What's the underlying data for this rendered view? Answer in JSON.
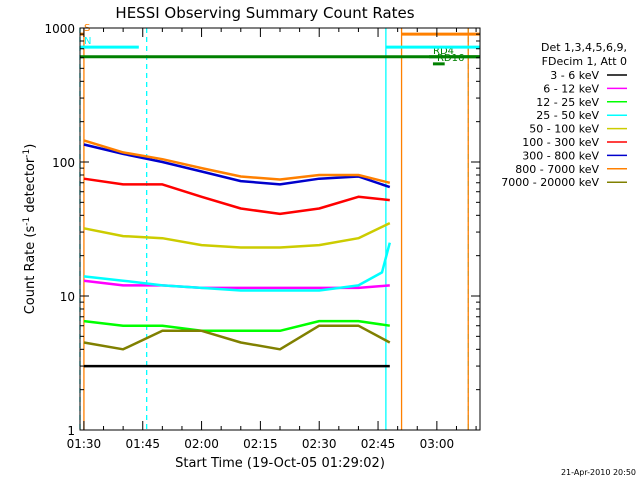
{
  "chart_data": {
    "type": "line",
    "title": "HESSI Observing Summary Count Rates",
    "xlabel": "Start Time (19-Oct-05 01:29:02)",
    "ylabel_main": "Count Rate (s",
    "ylabel_sup1": "-1",
    "ylabel_mid": " detector",
    "ylabel_sup2": "-1",
    "ylabel_end": ")",
    "y_scale": "log",
    "ylim": [
      1,
      1000
    ],
    "y_ticks": [
      {
        "value": 1,
        "label": "1"
      },
      {
        "value": 10,
        "label": "10"
      },
      {
        "value": 100,
        "label": "100"
      },
      {
        "value": 1000,
        "label": "1000"
      }
    ],
    "xlim": [
      "01:29",
      "03:11"
    ],
    "x_ticks": [
      {
        "value": "01:30",
        "label": "01:30"
      },
      {
        "value": "01:45",
        "label": "01:45"
      },
      {
        "value": "02:00",
        "label": "02:00"
      },
      {
        "value": "02:15",
        "label": "02:15"
      },
      {
        "value": "02:30",
        "label": "02:30"
      },
      {
        "value": "02:45",
        "label": "02:45"
      },
      {
        "value": "03:00",
        "label": "03:00"
      }
    ],
    "legend_header": [
      "Det 1,3,4,5,6,9,",
      "FDecim 1, Att 0"
    ],
    "legend_placement": "right",
    "series": [
      {
        "name": "3 - 6 keV",
        "color": "#000000",
        "x": [
          "01:30",
          "01:40",
          "01:50",
          "02:00",
          "02:10",
          "02:20",
          "02:30",
          "02:40",
          "02:48"
        ],
        "values": [
          3,
          3,
          3,
          3,
          3,
          3,
          3,
          3,
          3
        ]
      },
      {
        "name": "6 - 12 keV",
        "color": "#ff00ff",
        "x": [
          "01:30",
          "01:40",
          "01:50",
          "02:00",
          "02:10",
          "02:20",
          "02:30",
          "02:40",
          "02:48"
        ],
        "values": [
          13,
          12,
          12,
          11.5,
          11.5,
          11.5,
          11.5,
          11.5,
          12
        ]
      },
      {
        "name": "12 - 25 keV",
        "color": "#00ff00",
        "x": [
          "01:30",
          "01:40",
          "01:50",
          "02:00",
          "02:10",
          "02:20",
          "02:30",
          "02:40",
          "02:48"
        ],
        "values": [
          6.5,
          6,
          6,
          5.5,
          5.5,
          5.5,
          6.5,
          6.5,
          6
        ]
      },
      {
        "name": "25 - 50 keV",
        "color": "#00ffff",
        "x": [
          "01:30",
          "01:40",
          "01:50",
          "02:00",
          "02:10",
          "02:20",
          "02:30",
          "02:40",
          "02:46",
          "02:48"
        ],
        "values": [
          14,
          13,
          12,
          11.5,
          11,
          11,
          11,
          12,
          15,
          25
        ]
      },
      {
        "name": "50 - 100 keV",
        "color": "#cccc00",
        "x": [
          "01:30",
          "01:40",
          "01:50",
          "02:00",
          "02:10",
          "02:20",
          "02:30",
          "02:40",
          "02:48"
        ],
        "values": [
          32,
          28,
          27,
          24,
          23,
          23,
          24,
          27,
          35
        ]
      },
      {
        "name": "100 - 300 keV",
        "color": "#ff0000",
        "x": [
          "01:30",
          "01:40",
          "01:50",
          "02:00",
          "02:10",
          "02:20",
          "02:30",
          "02:40",
          "02:48"
        ],
        "values": [
          75,
          68,
          68,
          55,
          45,
          41,
          45,
          55,
          52
        ]
      },
      {
        "name": "300 - 800 keV",
        "color": "#0000cc",
        "x": [
          "01:30",
          "01:40",
          "01:50",
          "02:00",
          "02:10",
          "02:20",
          "02:30",
          "02:40",
          "02:48"
        ],
        "values": [
          135,
          115,
          100,
          85,
          72,
          68,
          75,
          78,
          65
        ]
      },
      {
        "name": "800 - 7000 keV",
        "color": "#ff8000",
        "x": [
          "01:30",
          "01:40",
          "01:50",
          "02:00",
          "02:10",
          "02:20",
          "02:30",
          "02:40",
          "02:48"
        ],
        "values": [
          145,
          118,
          105,
          90,
          78,
          74,
          80,
          80,
          70
        ]
      },
      {
        "name": "7000 - 20000 keV",
        "color": "#808000",
        "x": [
          "01:30",
          "01:40",
          "01:50",
          "02:00",
          "02:10",
          "02:20",
          "02:30",
          "02:40",
          "02:48"
        ],
        "values": [
          4.5,
          4,
          5.5,
          5.5,
          4.5,
          4,
          6,
          6,
          4.5
        ]
      }
    ],
    "annotations": {
      "bars": [
        {
          "label": "S",
          "color": "#ff8000",
          "y": 900,
          "x_start": "01:29",
          "x_end": "01:30"
        },
        {
          "label": "N",
          "color": "#00ffff",
          "y": 720,
          "x_start": "01:29",
          "x_end": "01:44"
        },
        {
          "label": "",
          "color": "#008000",
          "y": 610,
          "x_start": "01:29",
          "x_end": "03:11"
        },
        {
          "label": "RD4",
          "color": "#008000",
          "y": 610,
          "x_start": "02:58",
          "x_end": "03:11"
        },
        {
          "label": "RD16",
          "color": "#008000",
          "y": 540,
          "x_start": "02:59",
          "x_end": "03:02"
        },
        {
          "label": "",
          "color": "#ff8000",
          "y": 900,
          "x_start": "02:51",
          "x_end": "03:11"
        },
        {
          "label": "",
          "color": "#00ffff",
          "y": 720,
          "x_start": "02:47",
          "x_end": "03:11"
        }
      ],
      "vlines": [
        {
          "x": "01:29",
          "color": "#00ffff",
          "dashed": true
        },
        {
          "x": "01:30",
          "color": "#ff8000",
          "dashed": false
        },
        {
          "x": "01:46",
          "color": "#00ffff",
          "dashed": true
        },
        {
          "x": "02:47",
          "color": "#00ffff",
          "dashed": false
        },
        {
          "x": "02:51",
          "color": "#ff8000",
          "dashed": false
        },
        {
          "x": "03:08",
          "color": "#00ffff",
          "dashed": true
        },
        {
          "x": "03:08",
          "color": "#ff8000",
          "dashed": false
        }
      ]
    }
  },
  "footer_timestamp": "21-Apr-2010 20:50"
}
